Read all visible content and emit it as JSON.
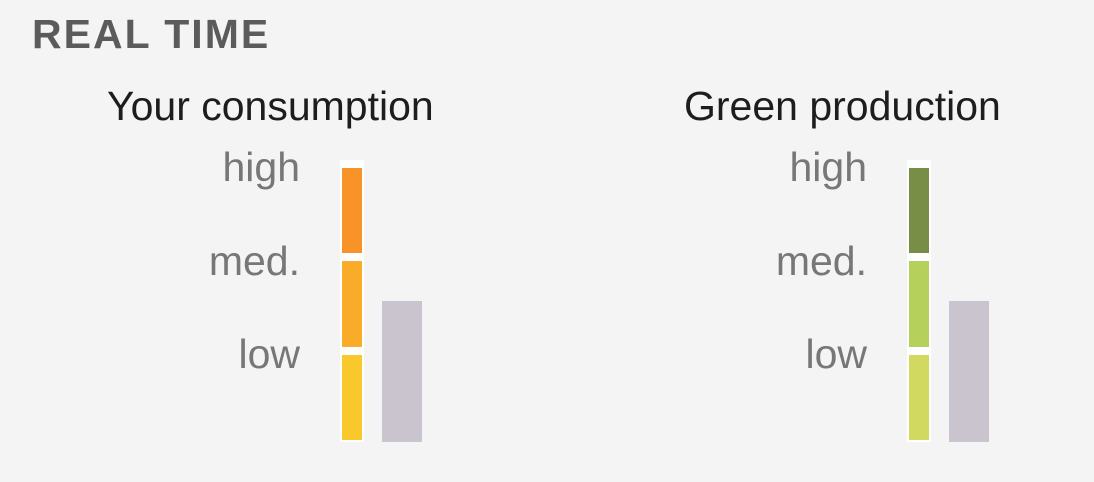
{
  "section": {
    "title": "REAL TIME"
  },
  "consumption": {
    "title": "Your consumption",
    "levels": {
      "high": "high",
      "med": "med.",
      "low": "low"
    },
    "scale_colors": {
      "high": "#f8932a",
      "med": "#f9ac28",
      "low": "#f9c92c"
    },
    "indicator_color": "#c9c4ce",
    "current_level_fraction": 0.5
  },
  "production": {
    "title": "Green production",
    "levels": {
      "high": "high",
      "med": "med.",
      "low": "low"
    },
    "scale_colors": {
      "high": "#788e46",
      "med": "#b5d05b",
      "low": "#d2d961"
    },
    "indicator_color": "#c9c4ce",
    "current_level_fraction": 0.5
  }
}
